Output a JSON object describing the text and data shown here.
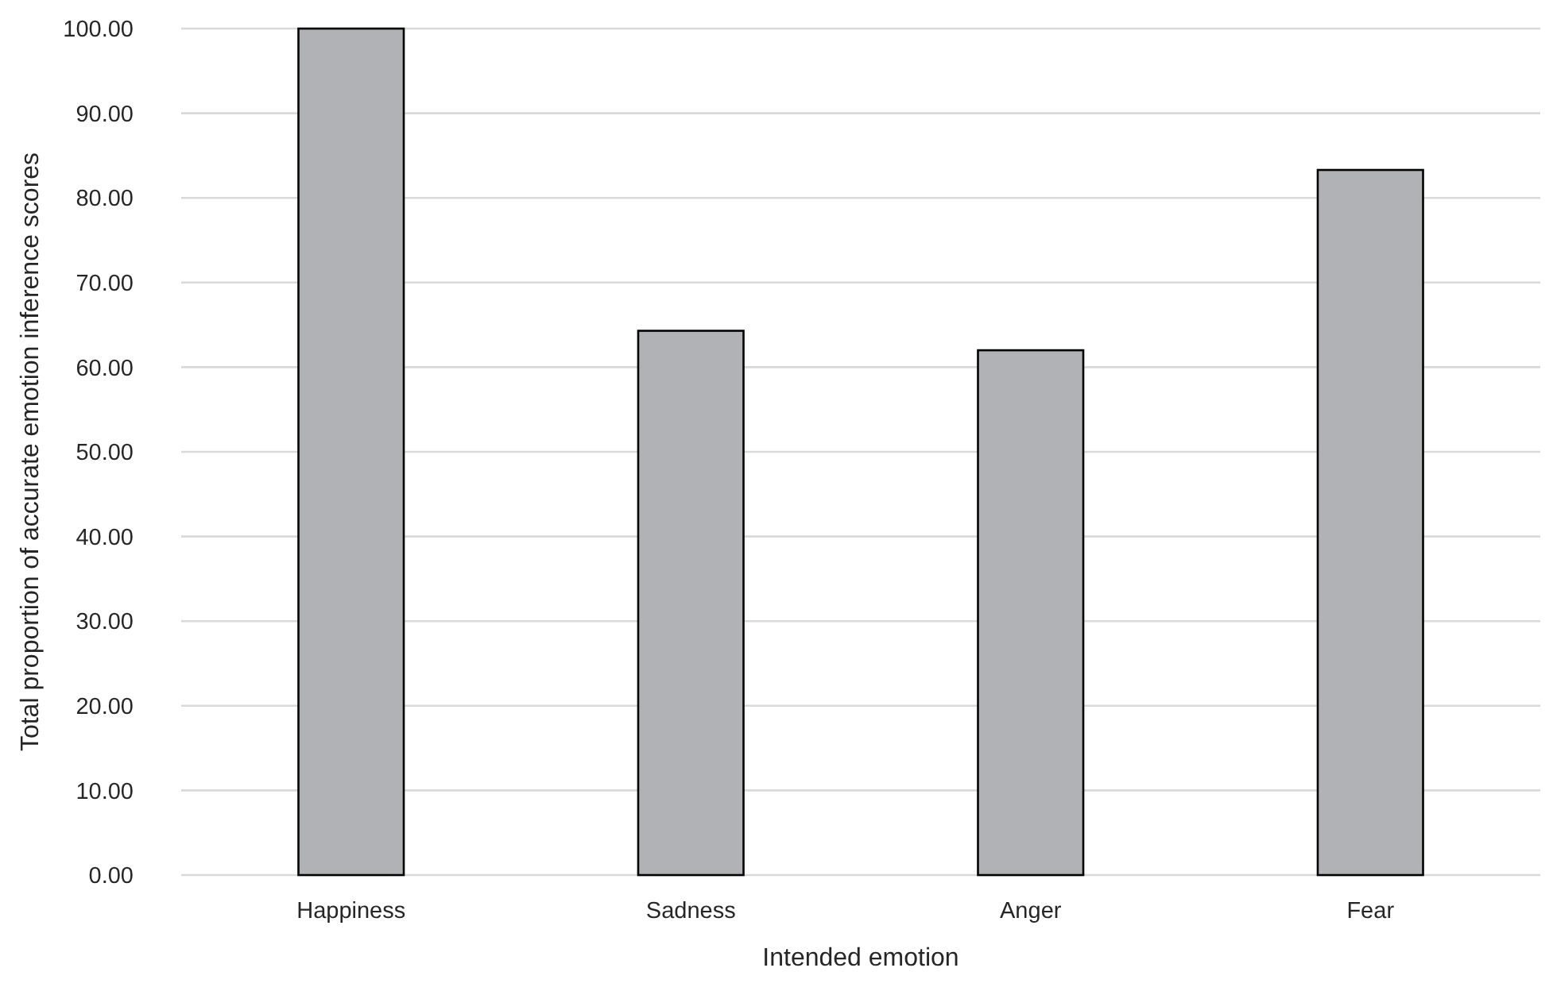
{
  "chart_data": {
    "type": "bar",
    "xlabel": "Intended emotion",
    "ylabel": "Total proportion of accurate emotion inference scores",
    "categories": [
      "Happiness",
      "Sadness",
      "Anger",
      "Fear"
    ],
    "values": [
      100,
      64.3,
      62.0,
      83.3
    ],
    "color": "#b1b2b6",
    "ylim": [
      0,
      100
    ],
    "yticks": [
      {
        "value": 0,
        "label": "0.00"
      },
      {
        "value": 10,
        "label": "10.00"
      },
      {
        "value": 20,
        "label": "20.00"
      },
      {
        "value": 30,
        "label": "30.00"
      },
      {
        "value": 40,
        "label": "40.00"
      },
      {
        "value": 50,
        "label": "50.00"
      },
      {
        "value": 60,
        "label": "60.00"
      },
      {
        "value": 70,
        "label": "70.00"
      },
      {
        "value": 80,
        "label": "80.00"
      },
      {
        "value": 90,
        "label": "90.00"
      },
      {
        "value": 100,
        "label": "100.00"
      }
    ],
    "grid": "y"
  }
}
